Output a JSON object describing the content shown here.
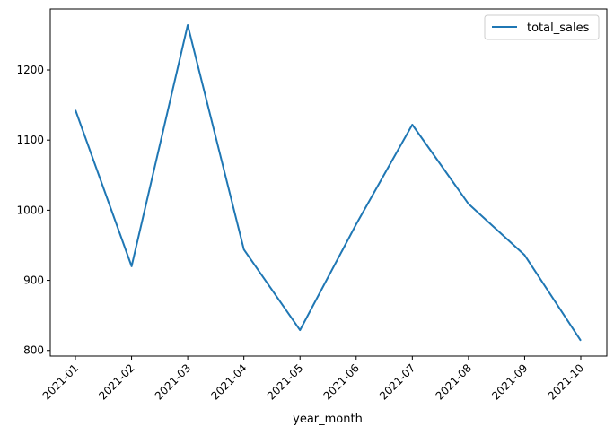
{
  "chart_data": {
    "type": "line",
    "title": "",
    "xlabel": "year_month",
    "ylabel": "",
    "categories": [
      "2021-01",
      "2021-02",
      "2021-03",
      "2021-04",
      "2021-05",
      "2021-06",
      "2021-07",
      "2021-08",
      "2021-09",
      "2021-10"
    ],
    "series": [
      {
        "name": "total_sales",
        "color": "#1f77b4",
        "values": [
          1143,
          920,
          1264,
          944,
          829,
          980,
          1122,
          1009,
          936,
          814
        ]
      }
    ],
    "yticks": [
      800,
      900,
      1000,
      1100,
      1200
    ],
    "ylim": [
      792,
      1287
    ],
    "grid": false,
    "legend": "top-right",
    "xtick_rotation": 45
  }
}
